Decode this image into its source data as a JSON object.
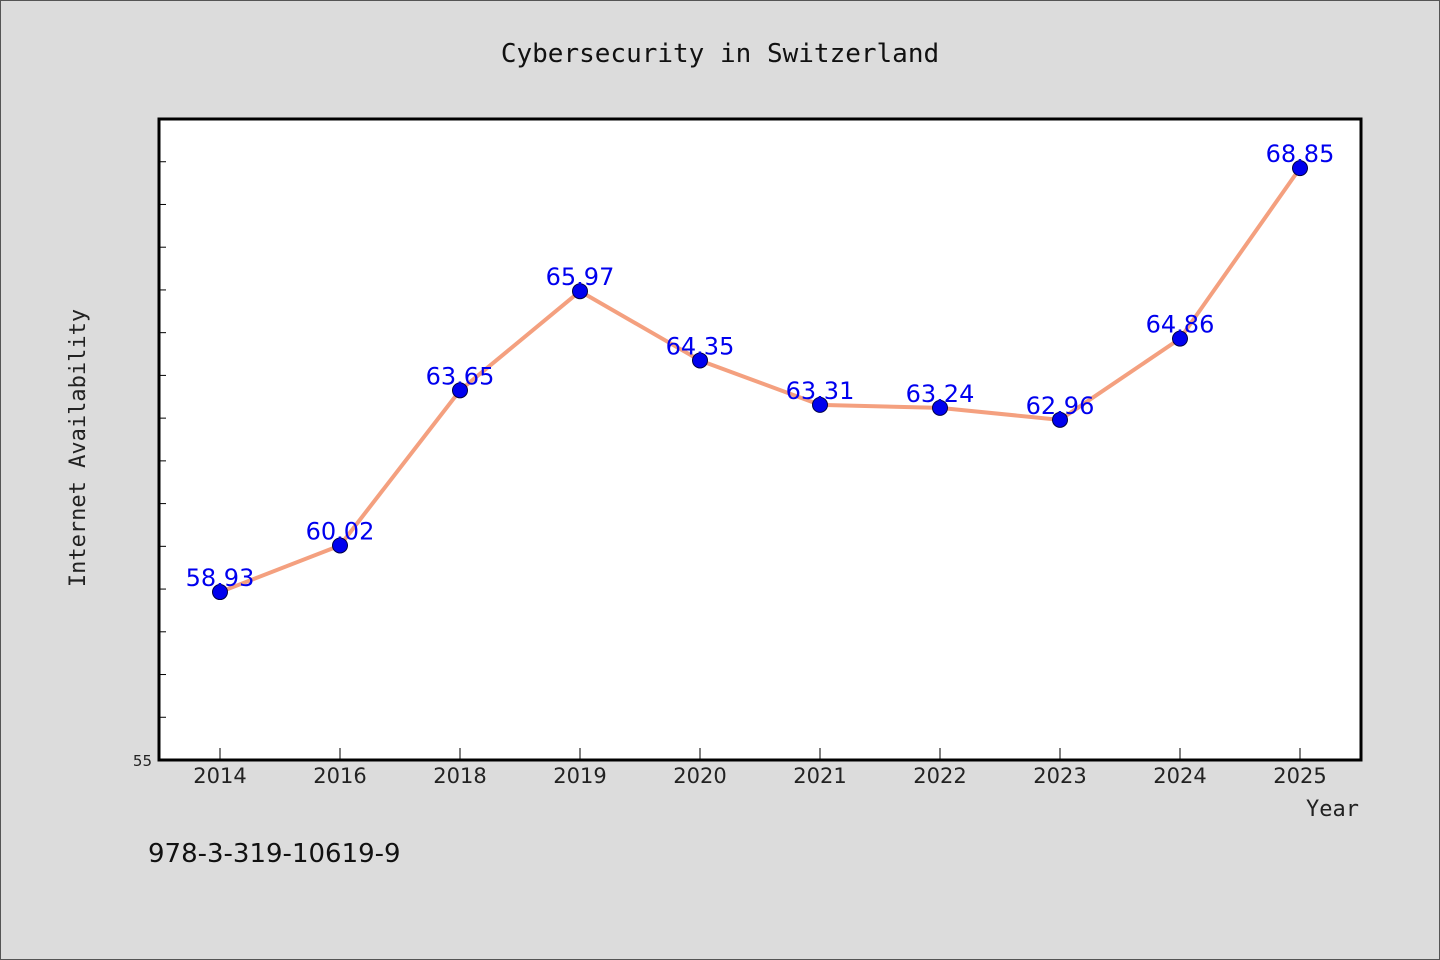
{
  "chart_data": {
    "type": "line",
    "title": "Cybersecurity in Switzerland",
    "xlabel": "Year",
    "ylabel": "Internet Availability",
    "categories": [
      "2014",
      "2016",
      "2018",
      "2019",
      "2020",
      "2021",
      "2022",
      "2023",
      "2024",
      "2025"
    ],
    "series": [
      {
        "values": [
          58.93,
          60.02,
          63.65,
          65.97,
          64.35,
          63.31,
          63.24,
          62.96,
          64.86,
          68.85
        ],
        "data_labels": [
          "58.93",
          "60.02",
          "63.65",
          "65.97",
          "64.35",
          "63.31",
          "63.24",
          "62.96",
          "64.86",
          "68.85"
        ]
      }
    ],
    "ylim": [
      55,
      70
    ],
    "y_tick_label": "55",
    "line_color": "#f4a07f",
    "marker_color": "#0000ee",
    "label_color": "#0000ee",
    "grid": false,
    "legend": "none"
  },
  "footer": {
    "isbn": "978-3-319-10619-9"
  }
}
